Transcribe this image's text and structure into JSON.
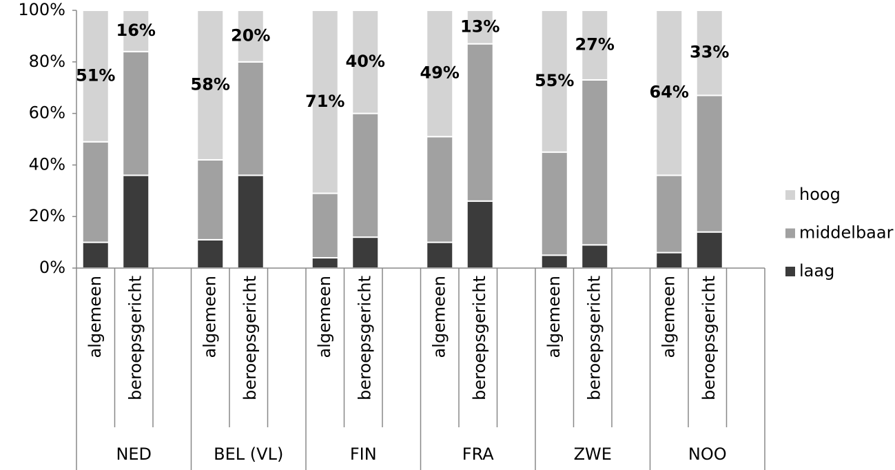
{
  "chart_data": {
    "type": "stacked-bar",
    "groups": [
      "NED",
      "BEL (VL)",
      "FIN",
      "FRA",
      "ZWE",
      "NOO"
    ],
    "categories": [
      "algemeen",
      "beroepsgericht",
      "algemeen",
      "beroepsgericht",
      "algemeen",
      "beroepsgericht",
      "algemeen",
      "beroepsgericht",
      "algemeen",
      "beroepsgericht",
      "algemeen",
      "beroepsgericht"
    ],
    "series": [
      {
        "name": "laag",
        "color": "#3b3b3b",
        "values": [
          10,
          36,
          11,
          36,
          4,
          12,
          10,
          26,
          5,
          9,
          6,
          14
        ]
      },
      {
        "name": "middelbaar",
        "color": "#a1a1a1",
        "values": [
          39,
          48,
          31,
          44,
          25,
          48,
          41,
          61,
          40,
          64,
          30,
          53
        ]
      },
      {
        "name": "hoog",
        "color": "#d3d3d3",
        "values": [
          51,
          16,
          58,
          20,
          71,
          40,
          49,
          13,
          55,
          27,
          64,
          33
        ],
        "value_labels": [
          "51%",
          "16%",
          "58%",
          "20%",
          "71%",
          "40%",
          "49%",
          "13%",
          "55%",
          "27%",
          "64%",
          "33%"
        ]
      }
    ],
    "ylim": [
      0,
      100
    ],
    "yticks": [
      {
        "value": 0,
        "label": "0%"
      },
      {
        "value": 20,
        "label": "20%"
      },
      {
        "value": 40,
        "label": "40%"
      },
      {
        "value": 60,
        "label": "60%"
      },
      {
        "value": 80,
        "label": "80%"
      },
      {
        "value": 100,
        "label": "100%"
      }
    ],
    "legend": "right"
  }
}
